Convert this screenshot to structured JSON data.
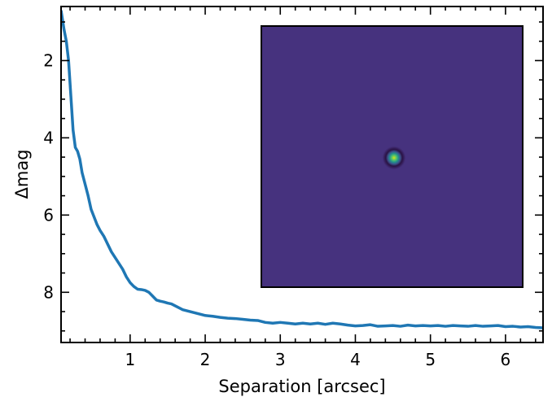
{
  "chart_data": {
    "type": "line",
    "title": "",
    "xlabel": "Separation [arcsec]",
    "ylabel": "Δmag",
    "xlim": [
      0.08,
      6.5
    ],
    "ylim": [
      9.3,
      0.6
    ],
    "y_inverted": true,
    "grid": false,
    "legend": "none",
    "x_ticks": [
      1,
      2,
      3,
      4,
      5,
      6
    ],
    "x_tick_labels": [
      "1",
      "2",
      "3",
      "4",
      "5",
      "6"
    ],
    "y_ticks": [
      2,
      4,
      6,
      8
    ],
    "y_tick_labels": [
      "2",
      "4",
      "6",
      "8"
    ],
    "series": [
      {
        "color": "#1f77b4",
        "x": [
          0.08,
          0.12,
          0.15,
          0.18,
          0.21,
          0.24,
          0.27,
          0.3,
          0.33,
          0.36,
          0.4,
          0.44,
          0.48,
          0.52,
          0.56,
          0.6,
          0.65,
          0.7,
          0.75,
          0.8,
          0.85,
          0.9,
          0.95,
          1.0,
          1.05,
          1.1,
          1.15,
          1.2,
          1.25,
          1.3,
          1.35,
          1.4,
          1.45,
          1.5,
          1.55,
          1.6,
          1.7,
          1.8,
          1.9,
          2.0,
          2.1,
          2.2,
          2.3,
          2.4,
          2.5,
          2.6,
          2.7,
          2.8,
          2.9,
          3.0,
          3.1,
          3.2,
          3.3,
          3.4,
          3.5,
          3.6,
          3.7,
          3.8,
          3.9,
          4.0,
          4.1,
          4.2,
          4.3,
          4.4,
          4.5,
          4.6,
          4.7,
          4.8,
          4.9,
          5.0,
          5.1,
          5.2,
          5.3,
          5.4,
          5.5,
          5.6,
          5.7,
          5.8,
          5.9,
          6.0,
          6.1,
          6.2,
          6.3,
          6.4,
          6.5
        ],
        "values": [
          0.7,
          1.2,
          1.5,
          2.0,
          2.9,
          3.8,
          4.25,
          4.35,
          4.55,
          4.9,
          5.2,
          5.5,
          5.85,
          6.05,
          6.25,
          6.4,
          6.55,
          6.75,
          6.95,
          7.1,
          7.25,
          7.4,
          7.6,
          7.75,
          7.85,
          7.92,
          7.93,
          7.95,
          8.0,
          8.1,
          8.2,
          8.23,
          8.25,
          8.28,
          8.3,
          8.35,
          8.45,
          8.5,
          8.55,
          8.6,
          8.62,
          8.65,
          8.67,
          8.68,
          8.7,
          8.72,
          8.73,
          8.78,
          8.8,
          8.78,
          8.8,
          8.82,
          8.8,
          8.82,
          8.8,
          8.83,
          8.8,
          8.82,
          8.85,
          8.87,
          8.86,
          8.84,
          8.88,
          8.87,
          8.86,
          8.88,
          8.85,
          8.87,
          8.86,
          8.87,
          8.86,
          8.88,
          8.86,
          8.87,
          8.88,
          8.86,
          8.88,
          8.87,
          8.86,
          8.89,
          8.88,
          8.9,
          8.89,
          8.91,
          8.92
        ]
      }
    ],
    "inset": {
      "type": "image",
      "description_free": true,
      "background_color": "#46327e",
      "source_color_core": "#b5de2b",
      "source_color_mid": "#1fa187",
      "ring_color": "#2b1a4a"
    }
  }
}
